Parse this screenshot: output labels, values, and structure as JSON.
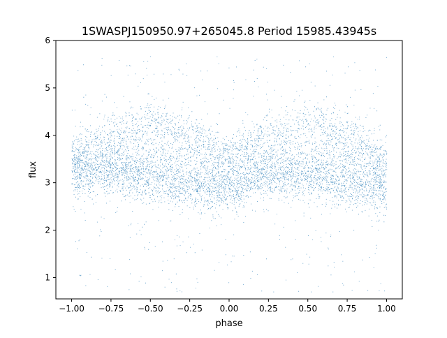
{
  "chart_data": {
    "type": "scatter",
    "title": "1SWASPJ150950.97+265045.8 Period 15985.43945s",
    "xlabel": "phase",
    "ylabel": "flux",
    "xlim": [
      -1.1,
      1.1
    ],
    "ylim": [
      0.55,
      6.0
    ],
    "xticks": [
      -1.0,
      -0.75,
      -0.5,
      -0.25,
      0.0,
      0.25,
      0.5,
      0.75,
      1.0
    ],
    "xtick_labels": [
      "−1.00",
      "−0.75",
      "−0.50",
      "−0.25",
      "0.00",
      "0.25",
      "0.50",
      "0.75",
      "1.00"
    ],
    "yticks": [
      1,
      2,
      3,
      4,
      5,
      6
    ],
    "ytick_labels": [
      "1",
      "2",
      "3",
      "4",
      "5",
      "6"
    ],
    "grid": false,
    "legend": "none",
    "point_color": "#1f77b4",
    "phase_range": [
      -1.0,
      1.0
    ],
    "lower_band": {
      "x": [
        -1.0,
        -0.75,
        -0.5,
        -0.25,
        0.0,
        0.25,
        0.5,
        0.75,
        1.0
      ],
      "y": [
        3.2,
        3.25,
        3.1,
        2.95,
        2.85,
        3.2,
        3.1,
        2.95,
        2.9
      ]
    },
    "upper_branch": {
      "x": [
        -1.0,
        -0.75,
        -0.5,
        -0.25,
        0.0,
        0.25,
        0.5,
        0.75,
        1.0
      ],
      "y": [
        3.6,
        4.0,
        4.3,
        4.0,
        3.6,
        4.0,
        4.3,
        4.0,
        3.6
      ]
    },
    "middle_branch": {
      "x": [
        -1.0,
        -0.75,
        -0.5,
        -0.25,
        0.0,
        0.25,
        0.5,
        0.75,
        1.0
      ],
      "y": [
        3.6,
        3.5,
        3.6,
        3.6,
        3.4,
        3.5,
        3.6,
        3.6,
        3.5
      ]
    },
    "scatter_sigma": 0.25,
    "outlier_range": [
      0.7,
      5.7
    ]
  }
}
